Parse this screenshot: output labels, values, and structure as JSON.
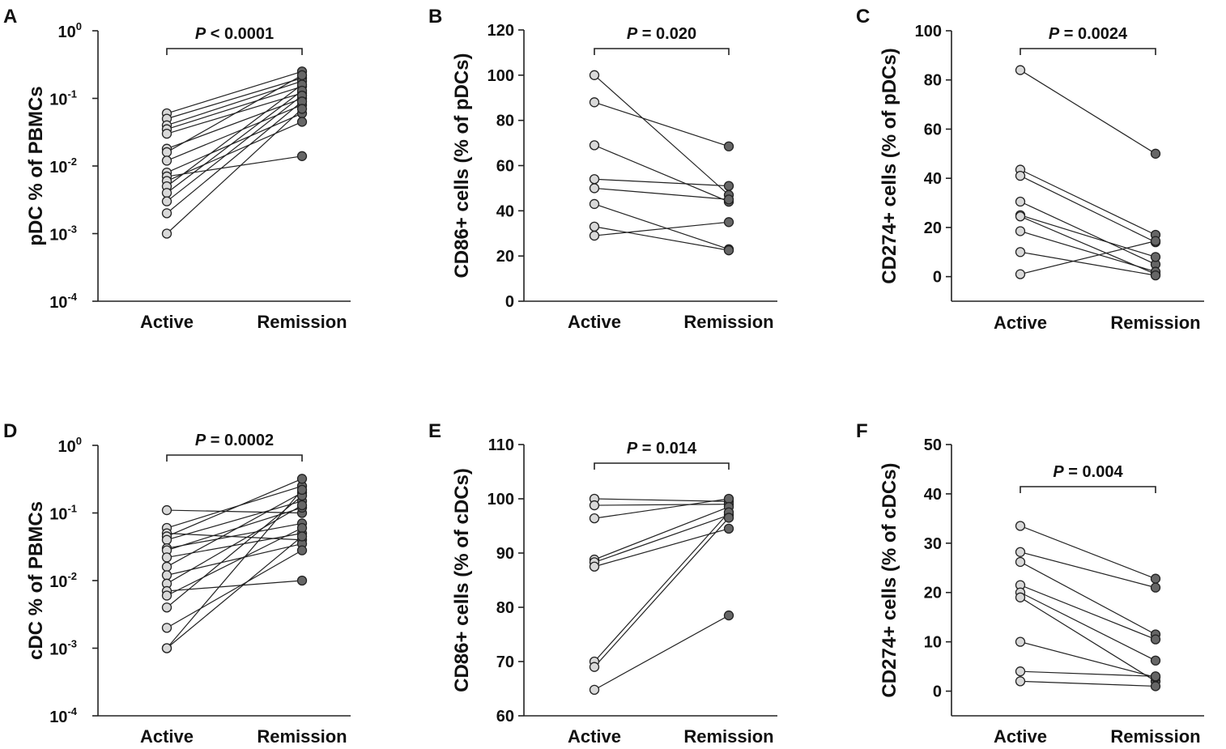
{
  "colors": {
    "axis": "#222222",
    "active_fill": "#d9d9d9",
    "remission_fill": "#666666",
    "line": "#222222"
  },
  "chart_data": [
    {
      "panel": "A",
      "type": "line",
      "scale": "log",
      "ylabel": "pDC % of PBMCs",
      "categories": [
        "Active",
        "Remission"
      ],
      "y_ticks": [
        {
          "v": -4,
          "label": "10",
          "exp": "-4"
        },
        {
          "v": -3,
          "label": "10",
          "exp": "-3"
        },
        {
          "v": -2,
          "label": "10",
          "exp": "-2"
        },
        {
          "v": -1,
          "label": "10",
          "exp": "-1"
        },
        {
          "v": 0,
          "label": "10",
          "exp": "0"
        }
      ],
      "ylim": [
        -4,
        0
      ],
      "p_italic": "P",
      "p_rest": " < 0.0001",
      "pairs": [
        [
          0.06,
          0.25
        ],
        [
          0.05,
          0.2
        ],
        [
          0.04,
          0.18
        ],
        [
          0.035,
          0.15
        ],
        [
          0.03,
          0.12
        ],
        [
          0.018,
          0.1
        ],
        [
          0.016,
          0.22
        ],
        [
          0.012,
          0.08
        ],
        [
          0.008,
          0.06
        ],
        [
          0.007,
          0.014
        ],
        [
          0.006,
          0.045
        ],
        [
          0.005,
          0.16
        ],
        [
          0.004,
          0.13
        ],
        [
          0.003,
          0.11
        ],
        [
          0.002,
          0.09
        ],
        [
          0.001,
          0.07
        ]
      ]
    },
    {
      "panel": "B",
      "type": "line",
      "scale": "linear",
      "ylabel": "CD86+ cells (% of pDCs)",
      "categories": [
        "Active",
        "Remission"
      ],
      "y_ticks": [
        {
          "v": 0,
          "label": "0"
        },
        {
          "v": 20,
          "label": "20"
        },
        {
          "v": 40,
          "label": "40"
        },
        {
          "v": 60,
          "label": "60"
        },
        {
          "v": 80,
          "label": "80"
        },
        {
          "v": 100,
          "label": "100"
        },
        {
          "v": 120,
          "label": "120"
        }
      ],
      "ylim": [
        0,
        120
      ],
      "p_italic": "P",
      "p_rest": " = 0.020",
      "pairs": [
        [
          100,
          47
        ],
        [
          88,
          68.5
        ],
        [
          69,
          44
        ],
        [
          54,
          51
        ],
        [
          50,
          45
        ],
        [
          43,
          23
        ],
        [
          33,
          22.5
        ],
        [
          29,
          35
        ]
      ]
    },
    {
      "panel": "C",
      "type": "line",
      "scale": "linear",
      "ylabel": "CD274+ cells (% of pDCs)",
      "categories": [
        "Active",
        "Remission"
      ],
      "y_ticks": [
        {
          "v": 0,
          "label": "0"
        },
        {
          "v": 20,
          "label": "20"
        },
        {
          "v": 40,
          "label": "40"
        },
        {
          "v": 60,
          "label": "60"
        },
        {
          "v": 80,
          "label": "80"
        },
        {
          "v": 100,
          "label": "100"
        }
      ],
      "ylim": [
        -10,
        100
      ],
      "p_italic": "P",
      "p_rest": " = 0.0024",
      "pairs": [
        [
          84,
          50
        ],
        [
          43.5,
          17
        ],
        [
          41,
          14
        ],
        [
          30.5,
          5
        ],
        [
          25,
          8
        ],
        [
          24.5,
          1
        ],
        [
          18.5,
          2
        ],
        [
          10,
          0.5
        ],
        [
          1,
          14.5
        ]
      ]
    },
    {
      "panel": "D",
      "type": "line",
      "scale": "log",
      "ylabel": "cDC % of PBMCs",
      "categories": [
        "Active",
        "Remission"
      ],
      "y_ticks": [
        {
          "v": -4,
          "label": "10",
          "exp": "-4"
        },
        {
          "v": -3,
          "label": "10",
          "exp": "-3"
        },
        {
          "v": -2,
          "label": "10",
          "exp": "-2"
        },
        {
          "v": -1,
          "label": "10",
          "exp": "-1"
        },
        {
          "v": 0,
          "label": "10",
          "exp": "0"
        }
      ],
      "ylim": [
        -4,
        0
      ],
      "p_italic": "P",
      "p_rest": " = 0.0002",
      "pairs": [
        [
          0.11,
          0.1
        ],
        [
          0.06,
          0.25
        ],
        [
          0.05,
          0.04
        ],
        [
          0.045,
          0.32
        ],
        [
          0.04,
          0.15
        ],
        [
          0.03,
          0.07
        ],
        [
          0.028,
          0.12
        ],
        [
          0.022,
          0.05
        ],
        [
          0.016,
          0.2
        ],
        [
          0.012,
          0.035
        ],
        [
          0.009,
          0.13
        ],
        [
          0.007,
          0.01
        ],
        [
          0.006,
          0.06
        ],
        [
          0.004,
          0.18
        ],
        [
          0.002,
          0.028
        ],
        [
          0.001,
          0.22
        ],
        [
          0.001,
          0.045
        ]
      ]
    },
    {
      "panel": "E",
      "type": "line",
      "scale": "linear",
      "ylabel": "CD86+ cells (% of cDCs)",
      "categories": [
        "Active",
        "Remission"
      ],
      "y_ticks": [
        {
          "v": 60,
          "label": "60"
        },
        {
          "v": 70,
          "label": "70"
        },
        {
          "v": 80,
          "label": "80"
        },
        {
          "v": 90,
          "label": "90"
        },
        {
          "v": 100,
          "label": "100"
        },
        {
          "v": 110,
          "label": "110"
        }
      ],
      "ylim": [
        60,
        110
      ],
      "p_italic": "P",
      "p_rest": " = 0.014",
      "pairs": [
        [
          100,
          99.5
        ],
        [
          98.8,
          99
        ],
        [
          96.4,
          100
        ],
        [
          88.8,
          98.5
        ],
        [
          88.3,
          97
        ],
        [
          87.5,
          94.5
        ],
        [
          70,
          97.5
        ],
        [
          69,
          96.5
        ],
        [
          64.8,
          78.5
        ]
      ]
    },
    {
      "panel": "F",
      "type": "line",
      "scale": "linear",
      "ylabel": "CD274+ cells (% of cDCs)",
      "categories": [
        "Active",
        "Remission"
      ],
      "y_ticks": [
        {
          "v": 0,
          "label": "0"
        },
        {
          "v": 10,
          "label": "10"
        },
        {
          "v": 20,
          "label": "20"
        },
        {
          "v": 30,
          "label": "30"
        },
        {
          "v": 40,
          "label": "40"
        },
        {
          "v": 50,
          "label": "50"
        }
      ],
      "ylim": [
        -5,
        50
      ],
      "p_italic": "P",
      "p_rest": " = 0.004",
      "pairs": [
        [
          33.5,
          22.8
        ],
        [
          28.2,
          21
        ],
        [
          26.2,
          11.5
        ],
        [
          21.5,
          10.5
        ],
        [
          20,
          6.2
        ],
        [
          19,
          2
        ],
        [
          10,
          2.8
        ],
        [
          4,
          3
        ],
        [
          2,
          1
        ]
      ]
    }
  ]
}
